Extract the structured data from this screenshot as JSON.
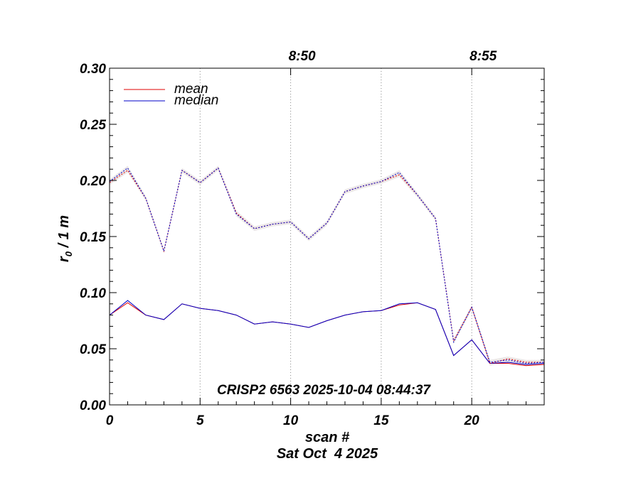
{
  "chart_data": {
    "type": "line",
    "xlabel": "scan #",
    "xlabel_sub": "Sat Oct  4 2025",
    "ylabel": "r",
    "ylabel_sub": "0",
    "ylabel_suffix": " / 1 m",
    "xlim": [
      0,
      24
    ],
    "ylim": [
      0,
      0.3
    ],
    "x_ticks": [
      0,
      5,
      10,
      15,
      20
    ],
    "y_ticks": [
      0.0,
      0.05,
      0.1,
      0.15,
      0.2,
      0.25,
      0.3
    ],
    "y_tick_labels": [
      "0.00",
      "0.05",
      "0.10",
      "0.15",
      "0.20",
      "0.25",
      "0.30"
    ],
    "top_axis": {
      "ticks": [
        10,
        20
      ],
      "labels": [
        "8:50",
        "8:55"
      ]
    },
    "grid_x_dotted": [
      5,
      10,
      15,
      20
    ],
    "annotation": "CRISP2 6563 2025-10-04 08:44:37",
    "legend": {
      "placement": "top-left",
      "entries": [
        {
          "label": "mean",
          "color": "#e00000"
        },
        {
          "label": "median",
          "color": "#0000c8"
        }
      ]
    },
    "series": [
      {
        "name": "mean",
        "color": "#e00000",
        "style": "solid",
        "x": [
          0,
          1,
          2,
          3,
          4,
          5,
          6,
          7,
          8,
          9,
          10,
          11,
          12,
          13,
          14,
          15,
          16,
          17,
          18,
          19,
          20,
          21,
          22,
          23,
          24
        ],
        "values": [
          0.08,
          0.091,
          0.08,
          0.076,
          0.09,
          0.086,
          0.084,
          0.08,
          0.072,
          0.074,
          0.072,
          0.069,
          0.075,
          0.08,
          0.083,
          0.084,
          0.089,
          0.091,
          0.085,
          0.044,
          0.058,
          0.037,
          0.037,
          0.035,
          0.036
        ]
      },
      {
        "name": "median",
        "color": "#0000c8",
        "style": "solid",
        "x": [
          0,
          1,
          2,
          3,
          4,
          5,
          6,
          7,
          8,
          9,
          10,
          11,
          12,
          13,
          14,
          15,
          16,
          17,
          18,
          19,
          20,
          21,
          22,
          23,
          24
        ],
        "values": [
          0.08,
          0.093,
          0.08,
          0.076,
          0.09,
          0.086,
          0.084,
          0.08,
          0.072,
          0.074,
          0.072,
          0.069,
          0.075,
          0.08,
          0.083,
          0.084,
          0.09,
          0.091,
          0.085,
          0.044,
          0.058,
          0.037,
          0.038,
          0.036,
          0.037
        ]
      },
      {
        "color": "#e00000",
        "style": "dotted",
        "x": [
          0,
          1,
          2,
          3,
          4,
          5,
          6,
          7,
          8,
          9,
          10,
          11,
          12,
          13,
          14,
          15,
          16,
          17,
          18,
          19,
          20,
          21,
          22,
          23,
          24
        ],
        "values": [
          0.198,
          0.209,
          0.184,
          0.137,
          0.209,
          0.198,
          0.211,
          0.171,
          0.157,
          0.161,
          0.163,
          0.148,
          0.162,
          0.19,
          0.195,
          0.199,
          0.205,
          0.187,
          0.166,
          0.057,
          0.087,
          0.037,
          0.041,
          0.038,
          0.038
        ]
      },
      {
        "color": "#0000c8",
        "style": "dotted",
        "x": [
          0,
          1,
          2,
          3,
          4,
          5,
          6,
          7,
          8,
          9,
          10,
          11,
          12,
          13,
          14,
          15,
          16,
          17,
          18,
          19,
          20,
          21,
          22,
          23,
          24
        ],
        "values": [
          0.199,
          0.211,
          0.184,
          0.137,
          0.209,
          0.198,
          0.211,
          0.17,
          0.157,
          0.161,
          0.163,
          0.148,
          0.162,
          0.19,
          0.195,
          0.199,
          0.207,
          0.187,
          0.166,
          0.056,
          0.087,
          0.038,
          0.04,
          0.037,
          0.038
        ]
      }
    ]
  }
}
